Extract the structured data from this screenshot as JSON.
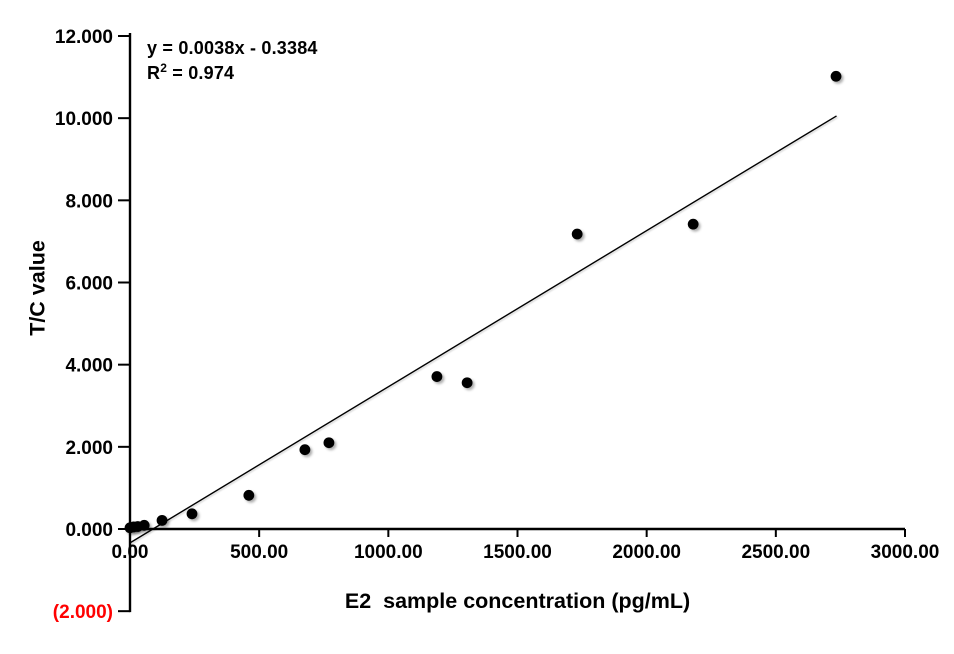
{
  "chart_data": {
    "type": "scatter",
    "title": "",
    "xlabel": "E2  sample concentration (pg/mL)",
    "ylabel": "T/C value",
    "xlim": [
      0,
      3000
    ],
    "ylim": [
      -2,
      12
    ],
    "grid": false,
    "legend": "none",
    "x_ticks": [
      {
        "v": 0,
        "label": "0.00"
      },
      {
        "v": 500,
        "label": "500.00"
      },
      {
        "v": 1000,
        "label": "1000.00"
      },
      {
        "v": 1500,
        "label": "1500.00"
      },
      {
        "v": 2000,
        "label": "2000.00"
      },
      {
        "v": 2500,
        "label": "2500.00"
      },
      {
        "v": 3000,
        "label": "3000.00"
      }
    ],
    "y_ticks": [
      {
        "v": -2,
        "label": "(2.000)",
        "color": "#FF0000"
      },
      {
        "v": 0,
        "label": "0.000"
      },
      {
        "v": 2,
        "label": "2.000"
      },
      {
        "v": 4,
        "label": "4.000"
      },
      {
        "v": 6,
        "label": "6.000"
      },
      {
        "v": 8,
        "label": "8.000"
      },
      {
        "v": 10,
        "label": "10.000"
      },
      {
        "v": 12,
        "label": "12.000"
      }
    ],
    "points": [
      [
        0,
        0.03
      ],
      [
        14,
        0.05
      ],
      [
        30,
        0.06
      ],
      [
        55,
        0.09
      ],
      [
        124,
        0.21
      ],
      [
        240,
        0.37
      ],
      [
        460,
        0.82
      ],
      [
        677,
        1.93
      ],
      [
        770,
        2.1
      ],
      [
        1188,
        3.71
      ],
      [
        1305,
        3.56
      ],
      [
        1731,
        7.18
      ],
      [
        2180,
        7.42
      ],
      [
        2733,
        11.02
      ]
    ],
    "trendline": {
      "slope": 0.0038,
      "intercept": -0.3384,
      "x_start": 0,
      "x_end": 2735
    },
    "annotation": {
      "line1": "y = 0.0038x - 0.3384",
      "r2_base": "R",
      "r2_sup": "2",
      "r2_rest": " = 0.974"
    },
    "colors": {
      "marker": "#000000",
      "trendline": "#000000",
      "axis": "#000000",
      "text": "#000000",
      "negative_label": "#FF0000",
      "background": "#FFFFFF"
    }
  }
}
